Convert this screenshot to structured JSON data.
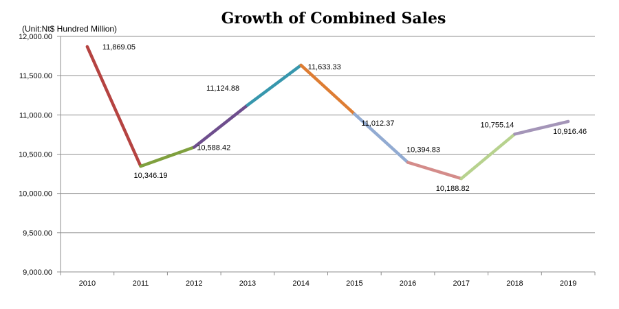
{
  "chart_data": {
    "type": "line",
    "title": "Growth of Combined Sales",
    "unit_label": "(Unit:Nt$ Hundred Million)",
    "xlabel": "",
    "ylabel": "",
    "categories": [
      "2010",
      "2011",
      "2012",
      "2013",
      "2014",
      "2015",
      "2016",
      "2017",
      "2018",
      "2019"
    ],
    "values": [
      11869.05,
      10346.19,
      10588.42,
      11124.88,
      11633.33,
      11012.37,
      10394.83,
      10188.82,
      10755.14,
      10916.46
    ],
    "data_labels": [
      "11,869.05",
      "10,346.19",
      "10,588.42",
      "11,124.88",
      "11,633.33",
      "11,012.37",
      "10,394.83",
      "10,188.82",
      "10,755.14",
      "10,916.46"
    ],
    "ylim": [
      9000,
      12000
    ],
    "yticks": [
      9000,
      9500,
      10000,
      10500,
      11000,
      11500,
      12000
    ],
    "ytick_labels": [
      "9,000.00",
      "9,500.00",
      "10,000.00",
      "10,500.00",
      "11,000.00",
      "11,500.00",
      "12,000.00"
    ],
    "grid": true,
    "segment_colors": [
      "#b54341",
      "#7fa03e",
      "#6e4e8d",
      "#3797ad",
      "#de7d33",
      "#92abd2",
      "#d48c8a",
      "#b7d28e",
      "#a495b8"
    ]
  }
}
